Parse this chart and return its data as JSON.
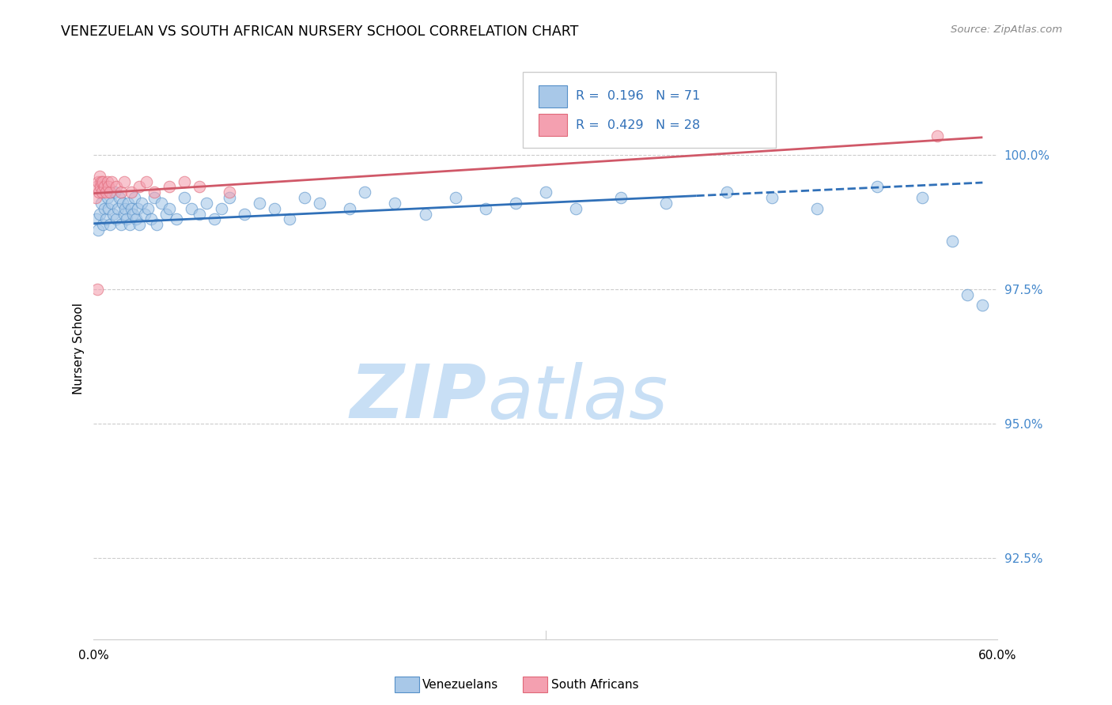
{
  "title": "VENEZUELAN VS SOUTH AFRICAN NURSERY SCHOOL CORRELATION CHART",
  "source": "Source: ZipAtlas.com",
  "ylabel": "Nursery School",
  "yticks": [
    92.5,
    95.0,
    97.5,
    100.0
  ],
  "ytick_labels": [
    "92.5%",
    "95.0%",
    "97.5%",
    "100.0%"
  ],
  "xmin": 0.0,
  "xmax": 60.0,
  "ymin": 91.0,
  "ymax": 101.8,
  "blue_color": "#a8c8e8",
  "pink_color": "#f4a0b0",
  "blue_edge_color": "#5590c8",
  "pink_edge_color": "#e06878",
  "blue_line_color": "#3070b8",
  "pink_line_color": "#d05868",
  "right_tick_color": "#4488cc",
  "legend_R_blue": "R = 0.196",
  "legend_N_blue": "N = 71",
  "legend_R_pink": "R = 0.429",
  "legend_N_pink": "N = 28",
  "blue_scatter_x": [
    0.2,
    0.3,
    0.4,
    0.5,
    0.6,
    0.7,
    0.8,
    0.9,
    1.0,
    1.1,
    1.2,
    1.3,
    1.4,
    1.5,
    1.6,
    1.7,
    1.8,
    1.9,
    2.0,
    2.1,
    2.2,
    2.3,
    2.4,
    2.5,
    2.6,
    2.7,
    2.8,
    2.9,
    3.0,
    3.2,
    3.4,
    3.6,
    3.8,
    4.0,
    4.2,
    4.5,
    4.8,
    5.0,
    5.5,
    6.0,
    6.5,
    7.0,
    7.5,
    8.0,
    8.5,
    9.0,
    10.0,
    11.0,
    12.0,
    13.0,
    14.0,
    15.0,
    17.0,
    18.0,
    20.0,
    22.0,
    24.0,
    26.0,
    28.0,
    30.0,
    32.0,
    35.0,
    38.0,
    42.0,
    45.0,
    48.0,
    52.0,
    55.0,
    57.0,
    58.0,
    59.0
  ],
  "blue_scatter_y": [
    98.8,
    98.6,
    98.9,
    99.1,
    98.7,
    99.0,
    98.8,
    99.2,
    99.0,
    98.7,
    99.1,
    98.9,
    99.3,
    98.8,
    99.0,
    99.2,
    98.7,
    99.1,
    98.9,
    99.0,
    98.8,
    99.1,
    98.7,
    99.0,
    98.9,
    99.2,
    98.8,
    99.0,
    98.7,
    99.1,
    98.9,
    99.0,
    98.8,
    99.2,
    98.7,
    99.1,
    98.9,
    99.0,
    98.8,
    99.2,
    99.0,
    98.9,
    99.1,
    98.8,
    99.0,
    99.2,
    98.9,
    99.1,
    99.0,
    98.8,
    99.2,
    99.1,
    99.0,
    99.3,
    99.1,
    98.9,
    99.2,
    99.0,
    99.1,
    99.3,
    99.0,
    99.2,
    99.1,
    99.3,
    99.2,
    99.0,
    99.4,
    99.2,
    98.4,
    97.4,
    97.2
  ],
  "pink_scatter_x": [
    0.15,
    0.2,
    0.3,
    0.35,
    0.4,
    0.45,
    0.5,
    0.55,
    0.6,
    0.7,
    0.8,
    0.9,
    1.0,
    1.1,
    1.2,
    1.5,
    1.8,
    2.0,
    2.5,
    3.0,
    3.5,
    4.0,
    5.0,
    6.0,
    7.0,
    9.0,
    56.0,
    0.25
  ],
  "pink_scatter_y": [
    99.2,
    99.4,
    99.5,
    99.3,
    99.6,
    99.4,
    99.5,
    99.3,
    99.5,
    99.4,
    99.3,
    99.5,
    99.4,
    99.3,
    99.5,
    99.4,
    99.3,
    99.5,
    99.3,
    99.4,
    99.5,
    99.3,
    99.4,
    99.5,
    99.4,
    99.3,
    100.35,
    97.5
  ],
  "blue_trend_x0": 0.0,
  "blue_trend_x1": 59.0,
  "blue_trend_y0": 98.72,
  "blue_trend_y1": 99.48,
  "blue_solid_x1": 40.0,
  "pink_trend_x0": 0.0,
  "pink_trend_x1": 59.0,
  "pink_trend_y0": 99.28,
  "pink_trend_y1": 100.32,
  "watermark_zip": "ZIP",
  "watermark_atlas": "atlas",
  "watermark_color": "#c8dff5"
}
